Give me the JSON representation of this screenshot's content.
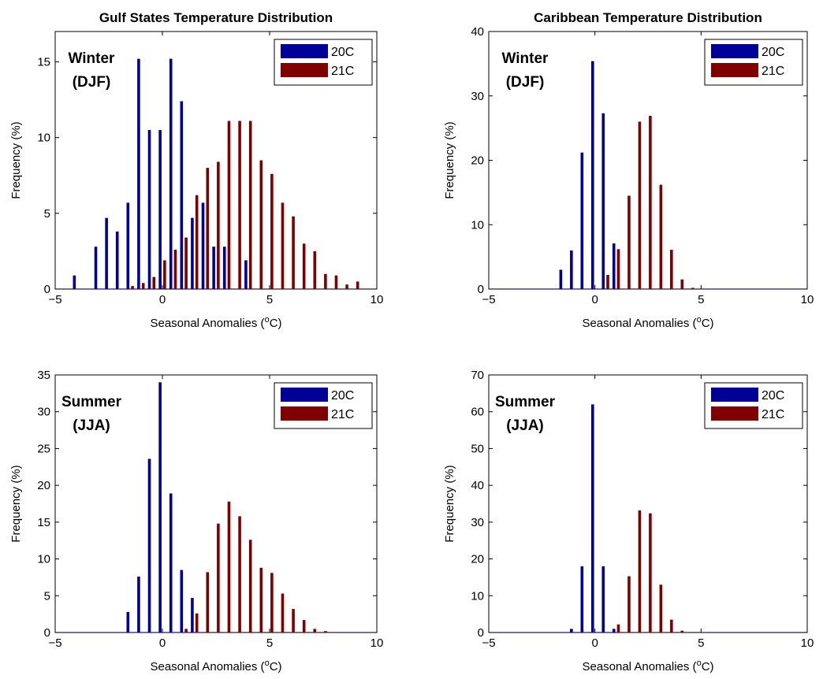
{
  "figure": {
    "colors": {
      "20C": "#000099",
      "21C": "#800000"
    },
    "bar_colors": [
      "#000099",
      "#800000"
    ]
  },
  "chart_data": [
    {
      "type": "bar",
      "title": "Gulf States Temperature Distribution",
      "season_label": [
        "Winter",
        "(DJF)"
      ],
      "xlabel": "Seasonal Anomalies (",
      "xlabel_sup": "o",
      "xlabel_end": "C)",
      "ylabel": "Frequency (%)",
      "xlim": [
        -5,
        10
      ],
      "ylim": [
        0,
        17
      ],
      "xticks": [
        -5,
        0,
        5,
        10
      ],
      "yticks": [
        0,
        5,
        10,
        15
      ],
      "legend": [
        "20C",
        "21C"
      ],
      "series": [
        {
          "name": "20C",
          "x": [
            -4,
            -3,
            -2.5,
            -2,
            -1.5,
            -1,
            -0.5,
            0,
            0.5,
            1,
            1.5,
            2,
            2.5,
            3,
            4
          ],
          "values": [
            0.9,
            2.8,
            4.7,
            3.8,
            5.7,
            15.2,
            10.5,
            10.5,
            15.2,
            12.4,
            4.7,
            5.7,
            2.8,
            2.8,
            1.9
          ]
        },
        {
          "name": "21C",
          "x": [
            -1.5,
            -1,
            -0.5,
            0,
            0.5,
            1,
            1.5,
            2,
            2.5,
            3,
            3.5,
            4,
            4.5,
            5,
            5.5,
            6,
            6.5,
            7,
            7.5,
            8,
            8.5,
            9
          ],
          "values": [
            0.2,
            0.4,
            0.8,
            1.9,
            2.6,
            3.4,
            6.2,
            8.0,
            8.4,
            11.1,
            11.1,
            11.1,
            8.5,
            7.6,
            5.7,
            4.8,
            3.0,
            2.5,
            1.0,
            0.9,
            0.3,
            0.5
          ]
        }
      ]
    },
    {
      "type": "bar",
      "title": "Caribbean Temperature Distribution",
      "season_label": [
        "Winter",
        "(DJF)"
      ],
      "xlabel": "Seasonal Anomalies (",
      "xlabel_sup": "o",
      "xlabel_end": "C)",
      "ylabel": "Frequency (%)",
      "xlim": [
        -5,
        10
      ],
      "ylim": [
        0,
        40
      ],
      "xticks": [
        -5,
        0,
        5,
        10
      ],
      "yticks": [
        0,
        10,
        20,
        30,
        40
      ],
      "legend": [
        "20C",
        "21C"
      ],
      "series": [
        {
          "name": "20C",
          "x": [
            -1.5,
            -1,
            -0.5,
            0,
            0.5,
            1
          ],
          "values": [
            3.0,
            6.0,
            21.2,
            35.4,
            27.3,
            7.1
          ]
        },
        {
          "name": "21C",
          "x": [
            0.5,
            1,
            1.5,
            2,
            2.5,
            3,
            3.5,
            4,
            4.5
          ],
          "values": [
            2.2,
            6.2,
            14.5,
            26.0,
            26.9,
            16.2,
            6.1,
            1.5,
            0.2
          ]
        }
      ]
    },
    {
      "type": "bar",
      "title": "",
      "season_label": [
        "Summer",
        "(JJA)"
      ],
      "xlabel": "Seasonal Anomalies (",
      "xlabel_sup": "o",
      "xlabel_end": "C)",
      "ylabel": "Frequency (%)",
      "xlim": [
        -5,
        10
      ],
      "ylim": [
        0,
        35
      ],
      "xticks": [
        -5,
        0,
        5,
        10
      ],
      "yticks": [
        0,
        5,
        10,
        15,
        20,
        25,
        30,
        35
      ],
      "legend": [
        "20C",
        "21C"
      ],
      "series": [
        {
          "name": "20C",
          "x": [
            -1.5,
            -1,
            -0.5,
            0,
            0.5,
            1,
            1.5
          ],
          "values": [
            2.8,
            7.6,
            23.6,
            34.0,
            18.9,
            8.5,
            4.7
          ]
        },
        {
          "name": "21C",
          "x": [
            1,
            1.5,
            2,
            2.5,
            3,
            3.5,
            4,
            4.5,
            5,
            5.5,
            6,
            6.5,
            7,
            7.5
          ],
          "values": [
            0.5,
            2.6,
            8.2,
            14.8,
            17.8,
            15.8,
            12.6,
            8.8,
            8.1,
            5.3,
            3.2,
            1.7,
            0.5,
            0.2
          ]
        }
      ]
    },
    {
      "type": "bar",
      "title": "",
      "season_label": [
        "Summer",
        "(JJA)"
      ],
      "xlabel": "Seasonal Anomalies (",
      "xlabel_sup": "o",
      "xlabel_end": "C)",
      "ylabel": "Frequency (%)",
      "xlim": [
        -5,
        10
      ],
      "ylim": [
        0,
        70
      ],
      "xticks": [
        -5,
        0,
        5,
        10
      ],
      "yticks": [
        0,
        10,
        20,
        30,
        40,
        50,
        60,
        70
      ],
      "legend": [
        "20C",
        "21C"
      ],
      "series": [
        {
          "name": "20C",
          "x": [
            -1,
            -0.5,
            0,
            0.5,
            1
          ],
          "values": [
            1.0,
            18.0,
            62.0,
            18.0,
            1.0
          ]
        },
        {
          "name": "21C",
          "x": [
            1,
            1.5,
            2,
            2.5,
            3,
            3.5,
            4
          ],
          "values": [
            2.2,
            15.3,
            33.2,
            32.4,
            13.0,
            3.5,
            0.5
          ]
        }
      ]
    }
  ]
}
